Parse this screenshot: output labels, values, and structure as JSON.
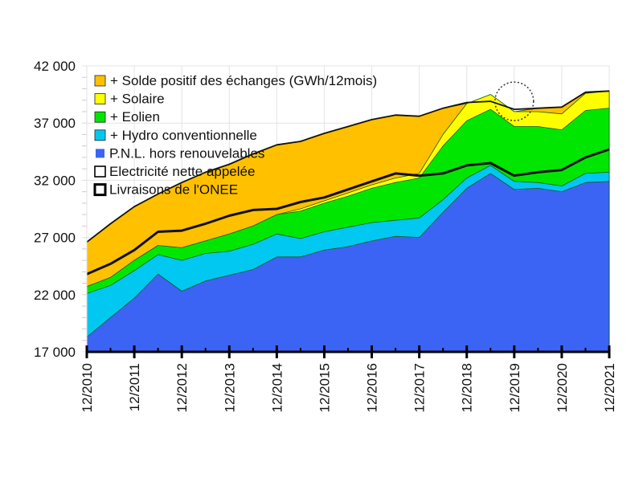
{
  "chart_data": {
    "type": "area",
    "title": "",
    "xlabel": "",
    "ylabel": "",
    "ylim": [
      17000,
      42000
    ],
    "yticks": [
      17000,
      22000,
      27000,
      32000,
      37000,
      42000
    ],
    "ytick_labels": [
      "17 000",
      "22 000",
      "27 000",
      "32 000",
      "37 000",
      "42 000"
    ],
    "xtick_labels": [
      "12/2010",
      "12/2011",
      "12/2012",
      "12/2013",
      "12/2014",
      "12/2015",
      "12/2016",
      "12/2017",
      "12/2018",
      "12/2019",
      "12/2020",
      "12/2021"
    ],
    "grid": true,
    "legend_position": "top-left",
    "x": [
      2010.92,
      2011.42,
      2011.92,
      2012.42,
      2012.92,
      2013.42,
      2013.92,
      2014.42,
      2014.92,
      2015.42,
      2015.92,
      2016.42,
      2016.92,
      2017.42,
      2017.92,
      2018.42,
      2018.92,
      2019.42,
      2019.92,
      2020.42,
      2020.92,
      2021.42,
      2021.92
    ],
    "stacked_series": [
      {
        "name": "P.N.L. hors renouvelables",
        "color": "#3b64f5",
        "cumulative": [
          18300,
          20000,
          21700,
          23800,
          22300,
          23200,
          23700,
          24200,
          25300,
          25300,
          25900,
          26200,
          26700,
          27100,
          27000,
          29200,
          31300,
          32600,
          31200,
          31300,
          31000,
          31800,
          31900
        ]
      },
      {
        "name": "+ Hydro conventionnelle",
        "color": "#00c8f0",
        "cumulative": [
          22100,
          22800,
          24100,
          25500,
          25000,
          25600,
          25800,
          26400,
          27300,
          26900,
          27500,
          27900,
          28300,
          28500,
          28700,
          30300,
          32200,
          33300,
          31900,
          31800,
          31500,
          32600,
          32700
        ]
      },
      {
        "name": "+ Eolien",
        "color": "#00e600",
        "cumulative": [
          22700,
          23500,
          25000,
          26300,
          26100,
          26700,
          27300,
          28000,
          29000,
          29300,
          30000,
          30600,
          31300,
          31800,
          32200,
          35000,
          37200,
          38200,
          36700,
          36700,
          36400,
          38100,
          38300
        ]
      },
      {
        "name": "+ Solaire",
        "color": "#ffff00",
        "cumulative": [
          22700,
          23500,
          25000,
          26300,
          26100,
          26700,
          27300,
          28000,
          29000,
          29500,
          30200,
          30900,
          31600,
          32200,
          32600,
          36000,
          38700,
          39500,
          38000,
          38000,
          37800,
          39600,
          39800
        ]
      },
      {
        "name": "+ Solde positif des échanges (GWh/12mois)",
        "color": "#ffc000",
        "cumulative": [
          26600,
          28200,
          29700,
          30800,
          31800,
          32700,
          33400,
          34300,
          35100,
          35400,
          36100,
          36700,
          37300,
          37700,
          37600,
          38300,
          38700,
          39500,
          38000,
          38300,
          38400,
          39700,
          39800
        ]
      }
    ],
    "lines": [
      {
        "name": "Electricité nette appelée",
        "width": "thin",
        "values": [
          26600,
          28200,
          29700,
          30800,
          31800,
          32700,
          33400,
          34300,
          35100,
          35400,
          36100,
          36700,
          37300,
          37700,
          37600,
          38300,
          38800,
          38900,
          38200,
          38300,
          38400,
          39700,
          39800
        ]
      },
      {
        "name": "Livraisons de l'ONEE",
        "width": "thick",
        "values": [
          23800,
          24700,
          25900,
          27500,
          27600,
          28200,
          28900,
          29400,
          29500,
          30100,
          30500,
          31200,
          31900,
          32600,
          32400,
          32600,
          33300,
          33500,
          32400,
          32700,
          32900,
          34000,
          34700
        ]
      }
    ],
    "annotation": {
      "type": "dotted-circle",
      "x": 2019.92,
      "y": 38900
    }
  },
  "legend": [
    {
      "label": "+ Solde positif des échanges (GWh/12mois)",
      "color": "#ffc000",
      "style": "fill"
    },
    {
      "label": "+ Solaire",
      "color": "#ffff00",
      "style": "fill"
    },
    {
      "label": "+ Eolien",
      "color": "#00e600",
      "style": "fill"
    },
    {
      "label": "+ Hydro conventionnelle",
      "color": "#00c8f0",
      "style": "fill"
    },
    {
      "label": "P.N.L. hors renouvelables",
      "color": "#3b64f5",
      "style": "fill-noborder"
    },
    {
      "label": "Electricité nette appelée",
      "color": "#ffffff",
      "style": "thin"
    },
    {
      "label": "Livraisons de l'ONEE",
      "color": "#ffffff",
      "style": "thick"
    }
  ]
}
